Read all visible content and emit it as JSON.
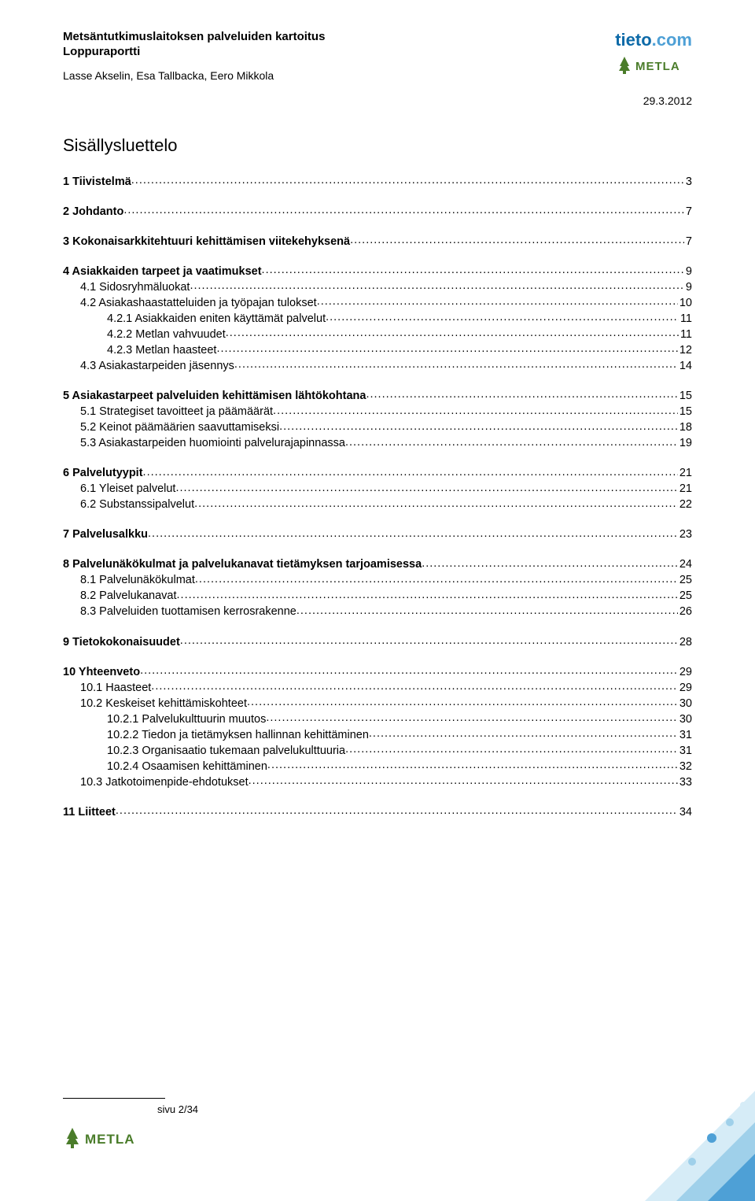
{
  "header": {
    "title1": "Metsäntutkimuslaitoksen palveluiden kartoitus",
    "title2": "Loppuraportti",
    "authors": "Lasse Akselin, Esa Tallbacka, Eero Mikkola",
    "date": "29.3.2012",
    "tieto_brand": "tieto",
    "tieto_com": ".com",
    "metla_brand": "METLA"
  },
  "toc_title": "Sisällysluettelo",
  "toc": [
    {
      "label": "1 Tiivistelmä",
      "page": "3",
      "bold": true,
      "indent": 0,
      "gap_after": true
    },
    {
      "label": "2 Johdanto",
      "page": "7",
      "bold": true,
      "indent": 0,
      "gap_after": true
    },
    {
      "label": "3 Kokonaisarkkitehtuuri kehittämisen viitekehyksenä",
      "page": "7",
      "bold": true,
      "indent": 0,
      "gap_after": true
    },
    {
      "label": "4 Asiakkaiden tarpeet ja vaatimukset",
      "page": "9",
      "bold": true,
      "indent": 0
    },
    {
      "label": "4.1 Sidosryhmäluokat",
      "page": "9",
      "bold": false,
      "indent": 1
    },
    {
      "label": "4.2 Asiakashaastatteluiden ja työpajan tulokset",
      "page": "10",
      "bold": false,
      "indent": 1
    },
    {
      "label": "4.2.1 Asiakkaiden eniten käyttämät palvelut",
      "page": "11",
      "bold": false,
      "indent": 2
    },
    {
      "label": "4.2.2 Metlan vahvuudet",
      "page": "11",
      "bold": false,
      "indent": 2
    },
    {
      "label": "4.2.3 Metlan haasteet",
      "page": "12",
      "bold": false,
      "indent": 2
    },
    {
      "label": "4.3 Asiakastarpeiden jäsennys",
      "page": "14",
      "bold": false,
      "indent": 1,
      "gap_after": true
    },
    {
      "label": "5 Asiakastarpeet palveluiden kehittämisen lähtökohtana",
      "page": "15",
      "bold": true,
      "indent": 0
    },
    {
      "label": "5.1 Strategiset tavoitteet ja päämäärät",
      "page": "15",
      "bold": false,
      "indent": 1
    },
    {
      "label": "5.2 Keinot päämäärien saavuttamiseksi",
      "page": "18",
      "bold": false,
      "indent": 1
    },
    {
      "label": "5.3 Asiakastarpeiden huomiointi palvelurajapinnassa",
      "page": "19",
      "bold": false,
      "indent": 1,
      "gap_after": true
    },
    {
      "label": "6 Palvelutyypit",
      "page": "21",
      "bold": true,
      "indent": 0
    },
    {
      "label": "6.1 Yleiset palvelut",
      "page": "21",
      "bold": false,
      "indent": 1
    },
    {
      "label": "6.2 Substanssipalvelut",
      "page": "22",
      "bold": false,
      "indent": 1,
      "gap_after": true
    },
    {
      "label": "7 Palvelusalkku",
      "page": "23",
      "bold": true,
      "indent": 0,
      "gap_after": true
    },
    {
      "label": "8 Palvelunäkökulmat ja palvelukanavat tietämyksen tarjoamisessa",
      "page": "24",
      "bold": true,
      "indent": 0
    },
    {
      "label": "8.1 Palvelunäkökulmat",
      "page": "25",
      "bold": false,
      "indent": 1
    },
    {
      "label": "8.2 Palvelukanavat",
      "page": "25",
      "bold": false,
      "indent": 1
    },
    {
      "label": "8.3 Palveluiden tuottamisen kerrosrakenne",
      "page": "26",
      "bold": false,
      "indent": 1,
      "gap_after": true
    },
    {
      "label": "9 Tietokokonaisuudet",
      "page": "28",
      "bold": true,
      "indent": 0,
      "gap_after": true
    },
    {
      "label": "10 Yhteenveto",
      "page": "29",
      "bold": true,
      "indent": 0
    },
    {
      "label": "10.1 Haasteet",
      "page": "29",
      "bold": false,
      "indent": 1
    },
    {
      "label": "10.2 Keskeiset kehittämiskohteet",
      "page": "30",
      "bold": false,
      "indent": 1
    },
    {
      "label": "10.2.1 Palvelukulttuurin muutos",
      "page": "30",
      "bold": false,
      "indent": 2
    },
    {
      "label": "10.2.2 Tiedon ja tietämyksen hallinnan kehittäminen",
      "page": "31",
      "bold": false,
      "indent": 2
    },
    {
      "label": "10.2.3 Organisaatio tukemaan palvelukulttuuria",
      "page": "31",
      "bold": false,
      "indent": 2
    },
    {
      "label": "10.2.4 Osaamisen kehittäminen",
      "page": "32",
      "bold": false,
      "indent": 2
    },
    {
      "label": "10.3 Jatkotoimenpide-ehdotukset",
      "page": "33",
      "bold": false,
      "indent": 1,
      "gap_after": true
    },
    {
      "label": "11 Liitteet",
      "page": "34",
      "bold": true,
      "indent": 0
    }
  ],
  "footer": {
    "page": "sivu 2/34",
    "metla": "METLA"
  },
  "colors": {
    "tieto_dark": "#0d6aa8",
    "tieto_light": "#4ea0d6",
    "metla_green": "#4a7c2a",
    "corner_c1": "#4ea0d6",
    "corner_c2": "#9fd0ea",
    "corner_c3": "#d6ecf7"
  }
}
